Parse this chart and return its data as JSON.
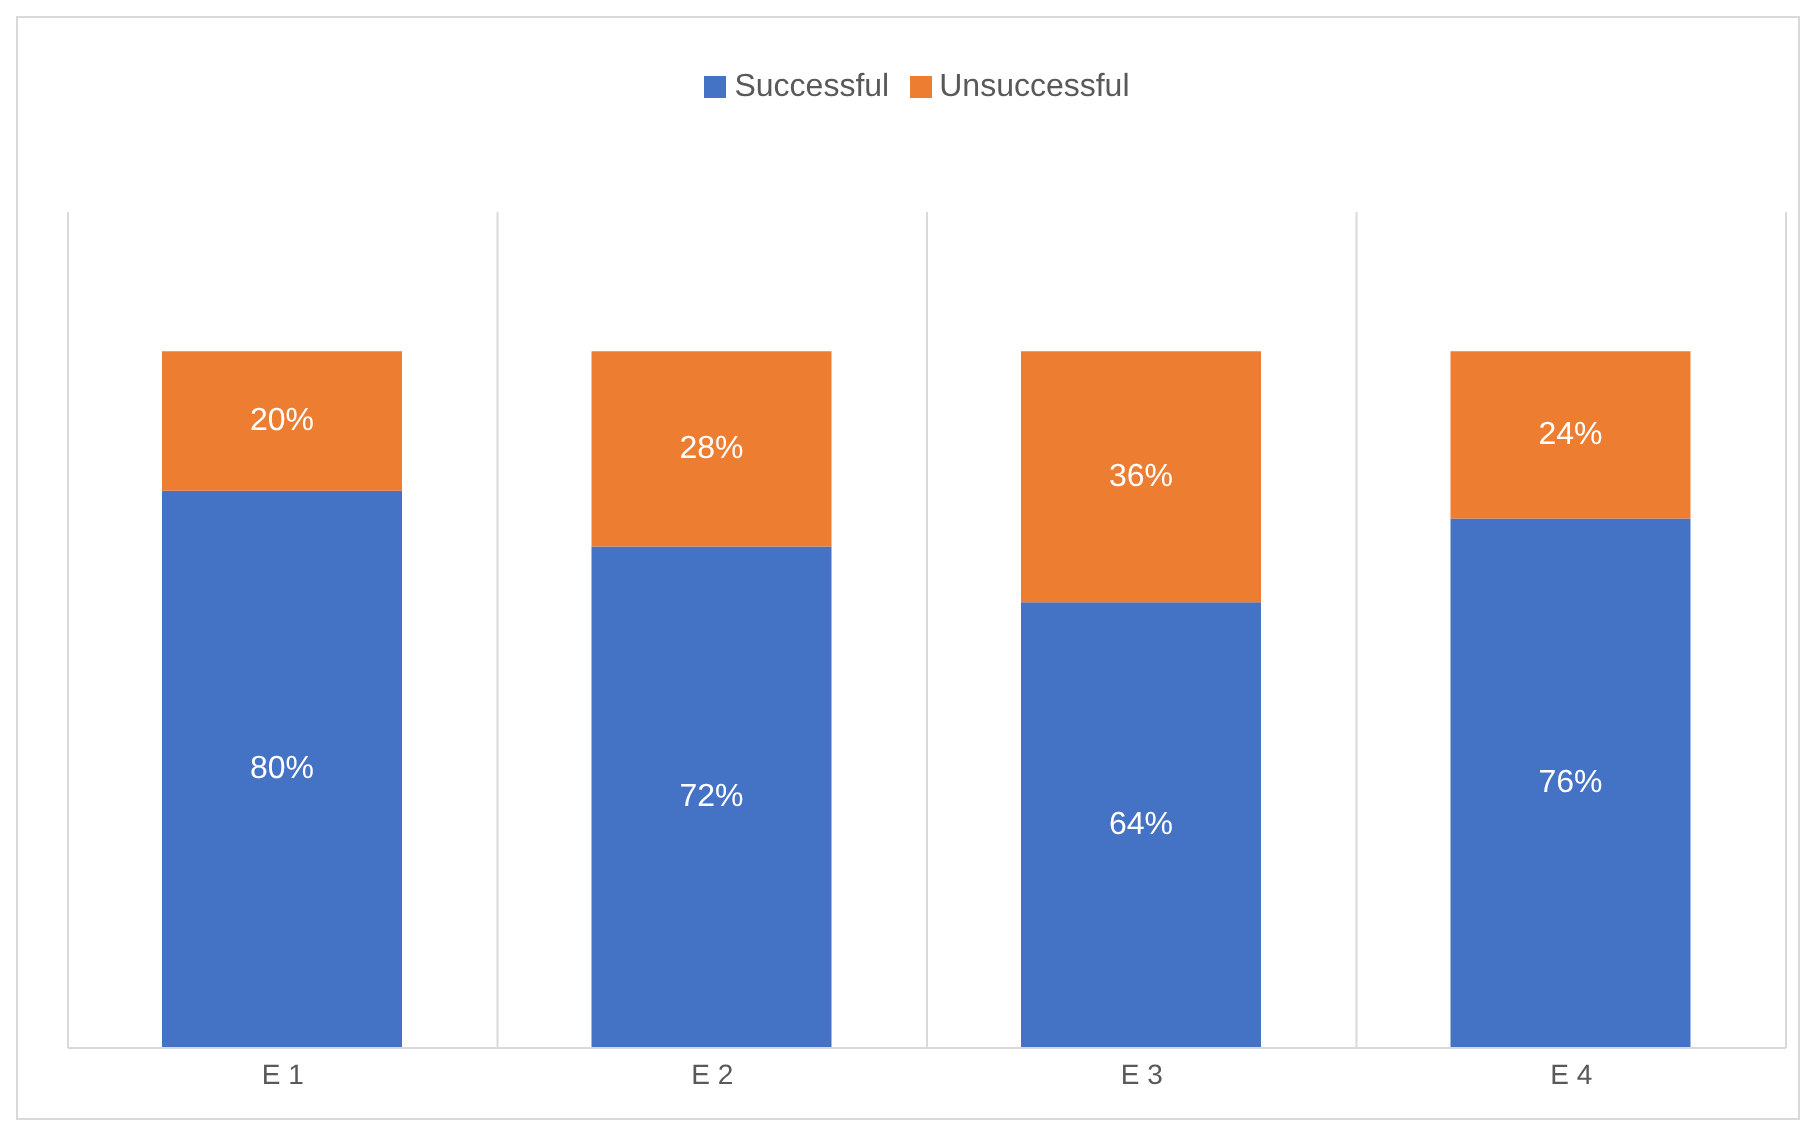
{
  "chart_data": {
    "type": "bar",
    "stacked": true,
    "categories": [
      "E 1",
      "E 2",
      "E 3",
      "E 4"
    ],
    "series": [
      {
        "name": "Successful",
        "color": "#4472c4",
        "values": [
          80,
          72,
          64,
          76
        ],
        "value_labels": [
          "80%",
          "72%",
          "64%",
          "76%"
        ]
      },
      {
        "name": "Unsuccessful",
        "color": "#ed7d31",
        "values": [
          20,
          28,
          36,
          24
        ],
        "value_labels": [
          "20%",
          "28%",
          "36%",
          "24%"
        ]
      }
    ],
    "ylim": [
      0,
      120
    ],
    "tick_labels": "x",
    "grid": "x",
    "legend": "top"
  }
}
